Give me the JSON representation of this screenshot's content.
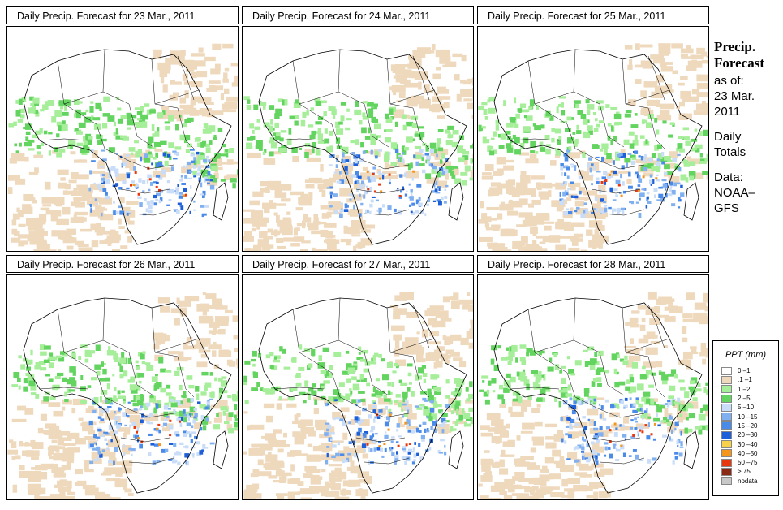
{
  "panels": [
    {
      "title": "Daily Precip. Forecast for  23 Mar., 2011"
    },
    {
      "title": "Daily Precip. Forecast for  24 Mar., 2011"
    },
    {
      "title": "Daily Precip. Forecast for  25 Mar., 2011"
    },
    {
      "title": "Daily Precip. Forecast for  26 Mar., 2011"
    },
    {
      "title": "Daily Precip. Forecast for  27 Mar., 2011"
    },
    {
      "title": "Daily Precip. Forecast for  28 Mar., 2011"
    }
  ],
  "side": {
    "heading1": "Precip.",
    "heading2": "Forecast",
    "asof_label": "as of:",
    "date1": "23 Mar.",
    "date2": "2011",
    "totals1": "Daily",
    "totals2": "Totals",
    "data1": "Data:",
    "data2": "NOAA–",
    "data3": "GFS"
  },
  "legend": {
    "title": "PPT (mm)",
    "items": [
      {
        "label": "0 –1",
        "color": "#ffffff"
      },
      {
        "label": ".1 –1",
        "color": "#efd9bd"
      },
      {
        "label": "1 –2",
        "color": "#a6ee9a"
      },
      {
        "label": "2 –5",
        "color": "#63d45f"
      },
      {
        "label": "5 –10",
        "color": "#c9dcf8"
      },
      {
        "label": "10 –15",
        "color": "#80b0f0"
      },
      {
        "label": "15 –20",
        "color": "#4a8ae8"
      },
      {
        "label": "20 –30",
        "color": "#1c5fd8"
      },
      {
        "label": "30 –40",
        "color": "#f6d24a"
      },
      {
        "label": "40 –50",
        "color": "#f4961e"
      },
      {
        "label": "50 –75",
        "color": "#e8380e"
      },
      {
        "label": "> 75",
        "color": "#8a2a14"
      },
      {
        "label": "nodata",
        "color": "#c8c8c8"
      }
    ]
  }
}
